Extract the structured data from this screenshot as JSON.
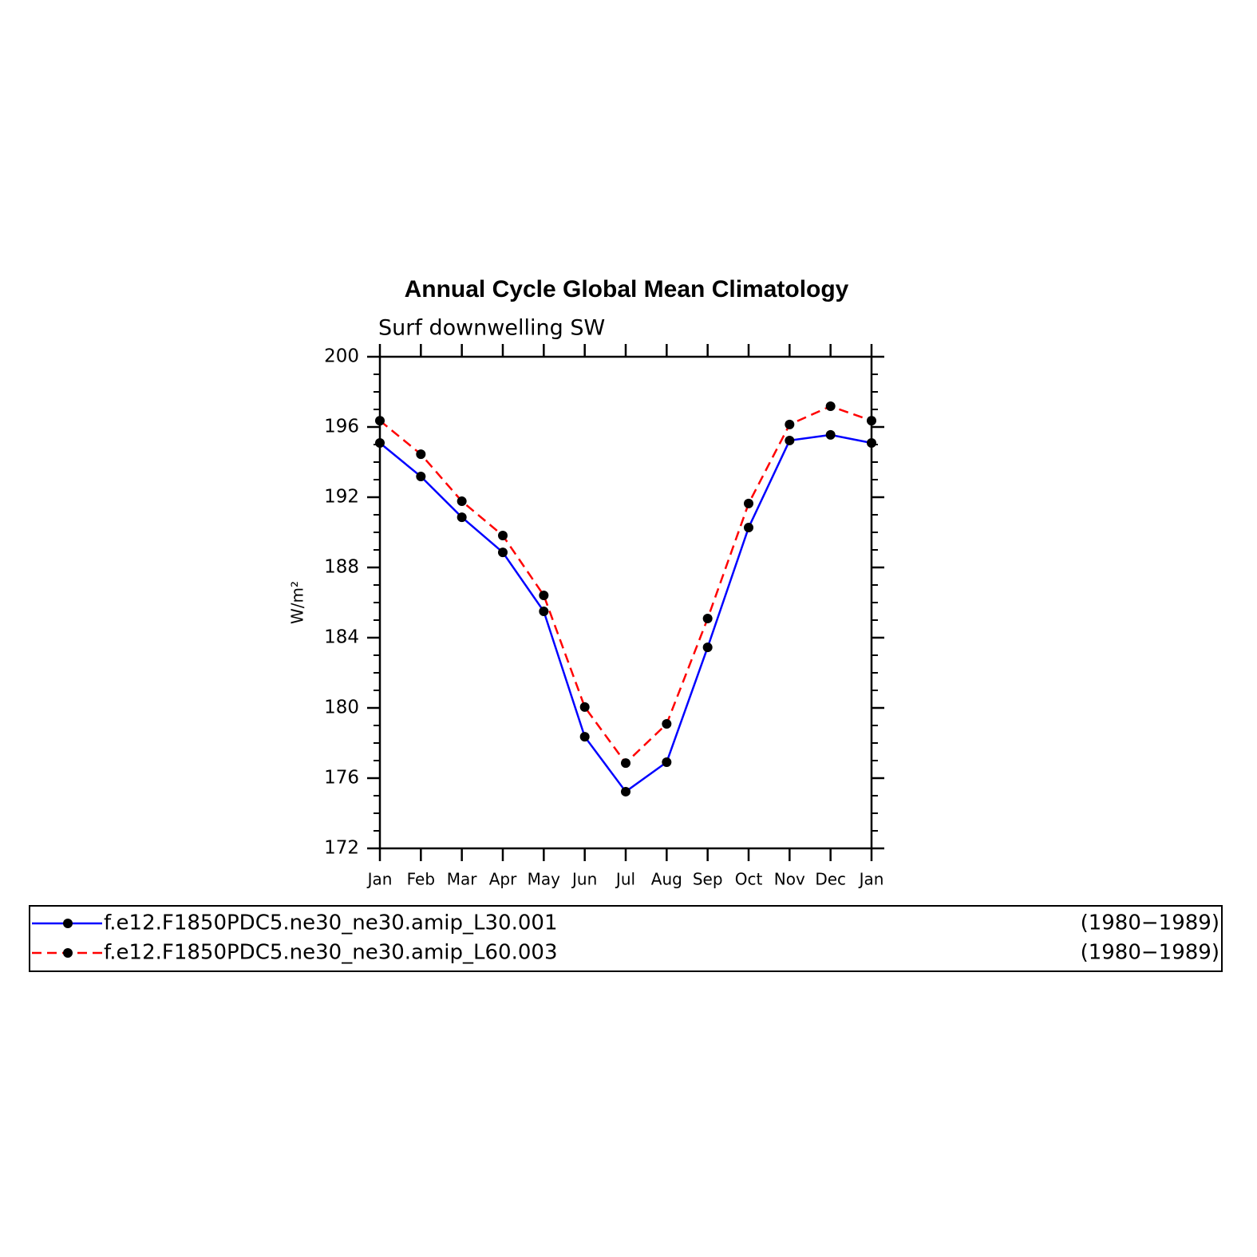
{
  "chart_data": {
    "type": "line",
    "title": "Annual Cycle Global Mean Climatology",
    "subtitle": "Surf downwelling SW",
    "y_label": "W/m²",
    "categories": [
      "Jan",
      "Feb",
      "Mar",
      "Apr",
      "May",
      "Jun",
      "Jul",
      "Aug",
      "Sep",
      "Oct",
      "Nov",
      "Dec",
      "Jan"
    ],
    "ylim": [
      172,
      200
    ],
    "yticks": [
      172,
      176,
      180,
      184,
      188,
      192,
      196,
      200
    ],
    "series": [
      {
        "name": "f.e12.F1850PDC5.ne30_ne30.amip_L30.001",
        "period": "(1980−1989)",
        "color": "#0000ff",
        "dash": false,
        "values": [
          195.09,
          193.18,
          190.86,
          188.86,
          185.5,
          178.36,
          175.23,
          176.91,
          183.45,
          190.27,
          195.23,
          195.55,
          195.09
        ]
      },
      {
        "name": "f.e12.F1850PDC5.ne30_ne30.amip_L60.003",
        "period": "(1980−1989)",
        "color": "#ff0000",
        "dash": true,
        "values": [
          196.36,
          194.45,
          191.77,
          189.82,
          186.41,
          180.05,
          176.86,
          179.09,
          185.09,
          191.64,
          196.14,
          197.18,
          196.36
        ]
      }
    ]
  }
}
